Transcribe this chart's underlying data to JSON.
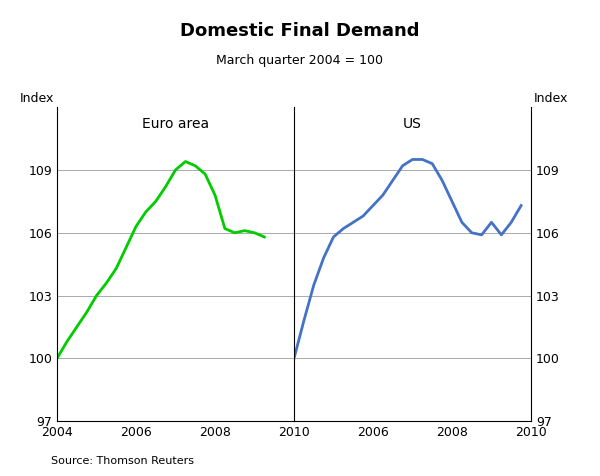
{
  "title": "Domestic Final Demand",
  "subtitle": "March quarter 2004 = 100",
  "left_label": "Euro area",
  "right_label": "US",
  "ylabel_left": "Index",
  "ylabel_right": "Index",
  "source": "Source: Thomson Reuters",
  "ylim": [
    97,
    112
  ],
  "yticks": [
    97,
    100,
    103,
    106,
    109
  ],
  "euro_x": [
    2004.0,
    2004.25,
    2004.5,
    2004.75,
    2005.0,
    2005.25,
    2005.5,
    2005.75,
    2006.0,
    2006.25,
    2006.5,
    2006.75,
    2007.0,
    2007.25,
    2007.5,
    2007.75,
    2008.0,
    2008.25,
    2008.5,
    2008.75,
    2009.0,
    2009.25
  ],
  "euro_y": [
    100.0,
    100.8,
    101.5,
    102.2,
    103.0,
    103.6,
    104.3,
    105.3,
    106.3,
    107.0,
    107.5,
    108.2,
    109.0,
    109.4,
    109.2,
    108.8,
    107.8,
    106.2,
    106.0,
    106.1,
    106.0,
    105.8
  ],
  "us_x": [
    2004.0,
    2004.25,
    2004.5,
    2004.75,
    2005.0,
    2005.25,
    2005.5,
    2005.75,
    2006.0,
    2006.25,
    2006.5,
    2006.75,
    2007.0,
    2007.25,
    2007.5,
    2007.75,
    2008.0,
    2008.25,
    2008.5,
    2008.75,
    2009.0,
    2009.25,
    2009.5,
    2009.75
  ],
  "us_y": [
    100.0,
    101.8,
    103.5,
    104.8,
    105.8,
    106.2,
    106.5,
    106.8,
    107.3,
    107.8,
    108.5,
    109.2,
    109.5,
    109.5,
    109.3,
    108.5,
    107.5,
    106.5,
    106.0,
    105.9,
    106.5,
    105.9,
    106.5,
    107.3
  ],
  "euro_color": "#00CC00",
  "us_color": "#4472C4",
  "line_width": 2.0,
  "left_xlim": [
    2004.0,
    2010.0
  ],
  "right_xlim": [
    2004.0,
    2010.0
  ],
  "left_xticks": [
    2004,
    2006,
    2008,
    2010
  ],
  "right_xticks": [
    2006,
    2008,
    2010
  ],
  "background_color": "#FFFFFF",
  "grid_color": "#AAAAAA",
  "grid_lw": 0.7
}
